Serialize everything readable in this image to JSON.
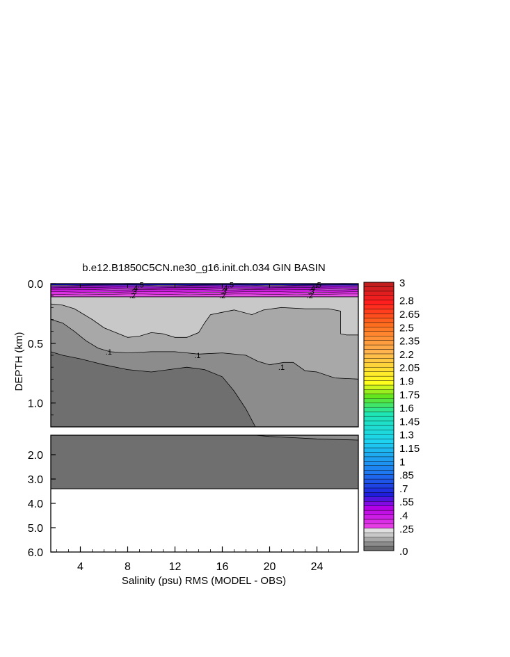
{
  "chart_data": {
    "type": "heatmap",
    "title": "b.e12.B1850C5CN.ne30_g16.init.ch.034 GIN BASIN",
    "xlabel": "Salinity (psu) RMS (MODEL - OBS)",
    "ylabel": "DEPTH (km)",
    "x_ticks": [
      "4",
      "8",
      "12",
      "16",
      "20",
      "24"
    ],
    "x_tick_values": [
      4,
      8,
      12,
      16,
      20,
      24
    ],
    "xlim": [
      1.5,
      27.5
    ],
    "upper_panel": {
      "ylim": [
        0.0,
        1.2
      ],
      "y_ticks": [
        "0.0",
        "0.5",
        "1.0"
      ],
      "y_tick_values": [
        0.0,
        0.5,
        1.0
      ]
    },
    "lower_panel": {
      "ylim": [
        1.2,
        6.0
      ],
      "y_ticks": [
        "2.0",
        "3.0",
        "4.0",
        "5.0",
        "6.0"
      ],
      "y_tick_values": [
        2.0,
        3.0,
        4.0,
        5.0,
        6.0
      ],
      "bottom_depth_km": 3.4
    },
    "contour_labels": [
      {
        "text": ".1",
        "x": 6.4,
        "y": 0.57
      },
      {
        "text": ".1",
        "x": 13.9,
        "y": 0.6
      },
      {
        "text": ".1",
        "x": 21.0,
        "y": 0.7
      },
      {
        "text": ".2",
        "x": 8.4,
        "y": 0.1
      },
      {
        "text": ".2",
        "x": 16.0,
        "y": 0.1
      },
      {
        "text": ".2",
        "x": 23.4,
        "y": 0.1
      },
      {
        "text": ".3",
        "x": 8.5,
        "y": 0.065
      },
      {
        "text": ".3",
        "x": 16.1,
        "y": 0.065
      },
      {
        "text": ".3",
        "x": 23.5,
        "y": 0.065
      },
      {
        "text": ".4",
        "x": 8.6,
        "y": 0.035
      },
      {
        "text": ".4",
        "x": 16.2,
        "y": 0.035
      },
      {
        "text": ".4",
        "x": 23.6,
        "y": 0.035
      },
      {
        "text": ".5",
        "x": 9.1,
        "y": 0.01
      },
      {
        "text": ".5",
        "x": 16.7,
        "y": 0.01
      },
      {
        "text": ".5",
        "x": 24.1,
        "y": 0.01
      }
    ],
    "colorbar": {
      "min": 0.0,
      "max": 3.0,
      "step": 0.05,
      "labels": [
        "3",
        "2.8",
        "2.65",
        "2.5",
        "2.35",
        "2.2",
        "2.05",
        "1.9",
        "1.75",
        "1.6",
        "1.45",
        "1.3",
        "1.15",
        "1",
        ".85",
        ".7",
        ".55",
        ".4",
        ".25",
        ".0"
      ],
      "label_values": [
        3.0,
        2.8,
        2.65,
        2.5,
        2.35,
        2.2,
        2.05,
        1.9,
        1.75,
        1.6,
        1.45,
        1.3,
        1.15,
        1.0,
        0.85,
        0.7,
        0.55,
        0.4,
        0.25,
        0.0
      ],
      "greys": [
        "#6f6f6f",
        "#8c8c8c",
        "#a8a8a8",
        "#c8c8c8",
        "#e0e0e0"
      ],
      "color_stops": [
        {
          "v": 0.25,
          "c": "#e63ce6"
        },
        {
          "v": 0.45,
          "c": "#b400e6"
        },
        {
          "v": 0.6,
          "c": "#1e1edc"
        },
        {
          "v": 0.85,
          "c": "#1e78f0"
        },
        {
          "v": 1.2,
          "c": "#1ed2f0"
        },
        {
          "v": 1.5,
          "c": "#1ee6b4"
        },
        {
          "v": 1.7,
          "c": "#64e61e"
        },
        {
          "v": 1.85,
          "c": "#ffff1e"
        },
        {
          "v": 2.2,
          "c": "#ffb450"
        },
        {
          "v": 2.5,
          "c": "#ff6e1e"
        },
        {
          "v": 2.75,
          "c": "#ff1e1e"
        },
        {
          "v": 3.0,
          "c": "#b41e1e"
        }
      ]
    },
    "regions": [
      {
        "level": 0.0,
        "fill": "#6f6f6f",
        "boundary": [
          [
            1.5,
            0.57
          ],
          [
            2.5,
            0.6
          ],
          [
            4.0,
            0.63
          ],
          [
            6.0,
            0.68
          ],
          [
            8.0,
            0.72
          ],
          [
            10.0,
            0.74
          ],
          [
            11.5,
            0.72
          ],
          [
            13.0,
            0.7
          ],
          [
            14.5,
            0.72
          ],
          [
            16.0,
            0.78
          ],
          [
            17.0,
            0.9
          ],
          [
            18.0,
            1.05
          ],
          [
            18.8,
            1.2
          ]
        ]
      },
      {
        "level": 0.05,
        "fill": "#8c8c8c",
        "boundary": [
          [
            1.5,
            0.3
          ],
          [
            2.5,
            0.33
          ],
          [
            3.5,
            0.4
          ],
          [
            4.5,
            0.48
          ],
          [
            5.5,
            0.54
          ],
          [
            6.5,
            0.57
          ],
          [
            8.0,
            0.58
          ],
          [
            10.0,
            0.57
          ],
          [
            12.0,
            0.57
          ],
          [
            14.0,
            0.59
          ],
          [
            16.0,
            0.58
          ],
          [
            18.0,
            0.6
          ],
          [
            19.0,
            0.65
          ],
          [
            20.0,
            0.68
          ],
          [
            21.2,
            0.66
          ],
          [
            22.0,
            0.66
          ],
          [
            23.0,
            0.73
          ],
          [
            24.0,
            0.74
          ],
          [
            25.5,
            0.79
          ],
          [
            27.5,
            0.8
          ]
        ]
      },
      {
        "level": 0.1,
        "fill": "#a8a8a8",
        "boundary": [
          [
            1.5,
            0.17
          ],
          [
            2.5,
            0.18
          ],
          [
            3.5,
            0.21
          ],
          [
            4.5,
            0.27
          ],
          [
            5.0,
            0.3
          ],
          [
            6.0,
            0.37
          ],
          [
            7.0,
            0.41
          ],
          [
            8.0,
            0.45
          ],
          [
            9.0,
            0.44
          ],
          [
            10.0,
            0.41
          ],
          [
            11.0,
            0.42
          ],
          [
            12.0,
            0.45
          ],
          [
            13.0,
            0.45
          ],
          [
            14.0,
            0.41
          ],
          [
            14.5,
            0.33
          ],
          [
            15.0,
            0.26
          ],
          [
            16.0,
            0.24
          ],
          [
            17.0,
            0.22
          ],
          [
            18.5,
            0.26
          ],
          [
            19.5,
            0.22
          ],
          [
            21.0,
            0.2
          ],
          [
            23.0,
            0.21
          ],
          [
            25.0,
            0.21
          ],
          [
            26.0,
            0.23
          ],
          [
            26.0,
            0.42
          ],
          [
            26.5,
            0.43
          ],
          [
            27.5,
            0.43
          ]
        ]
      },
      {
        "level": 0.15,
        "fill": "#c8c8c8",
        "boundary": [
          [
            1.5,
            0.11
          ],
          [
            27.5,
            0.11
          ]
        ]
      }
    ],
    "lower_region": {
      "grey_boundary": [
        [
          18.8,
          1.2
        ],
        [
          20.0,
          1.25
        ],
        [
          22.0,
          1.3
        ],
        [
          24.0,
          1.35
        ],
        [
          26.0,
          1.38
        ],
        [
          27.5,
          1.4
        ]
      ]
    },
    "surface_bands": [
      {
        "top": 0.0,
        "bottom": 0.012,
        "fill": "#0a0ab4"
      },
      {
        "top": 0.012,
        "bottom": 0.02,
        "fill": "#6428c8"
      },
      {
        "top": 0.02,
        "bottom": 0.035,
        "fill": "#9614c8"
      },
      {
        "top": 0.035,
        "bottom": 0.05,
        "fill": "#b414d2"
      },
      {
        "top": 0.05,
        "bottom": 0.07,
        "fill": "#c81edc"
      },
      {
        "top": 0.07,
        "bottom": 0.09,
        "fill": "#dc32e1"
      },
      {
        "top": 0.09,
        "bottom": 0.11,
        "fill": "#e650e6"
      }
    ]
  }
}
